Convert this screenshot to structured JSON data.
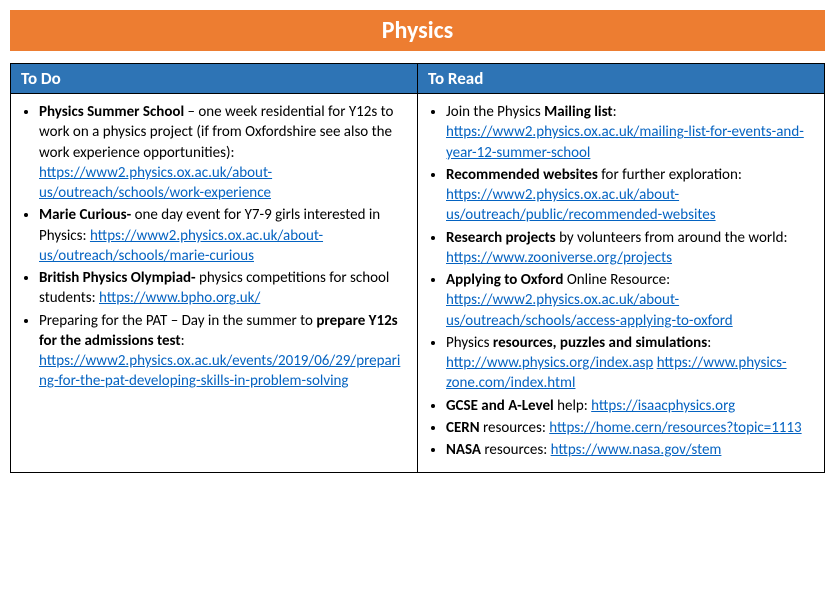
{
  "colors": {
    "title_bg": "#ed7d31",
    "header_bg": "#2e74b5",
    "link": "#0563c1",
    "border": "#000000",
    "background": "#ffffff"
  },
  "title": "Physics",
  "columns": {
    "todo": {
      "header": "To Do",
      "items": [
        {
          "segments": [
            {
              "text": "Physics Summer School",
              "bold": true
            },
            {
              "text": " – one week residential for Y12s to work on a physics project (if from Oxfordshire see also the work experience opportunities): "
            }
          ],
          "links": [
            "https://www2.physics.ox.ac.uk/about-us/outreach/schools/work-experience"
          ]
        },
        {
          "segments": [
            {
              "text": "Marie Curious-",
              "bold": true
            },
            {
              "text": " one day event for Y7-9 girls interested in Physics: "
            }
          ],
          "links": [
            "https://www2.physics.ox.ac.uk/about-us/outreach/schools/marie-curious"
          ]
        },
        {
          "segments": [
            {
              "text": "British Physics Olympiad-",
              "bold": true
            },
            {
              "text": " physics competitions for school students: "
            }
          ],
          "links": [
            "https://www.bpho.org.uk/"
          ]
        },
        {
          "segments": [
            {
              "text": "Preparing for the PAT – Day in the summer to "
            },
            {
              "text": "prepare Y12s for the admissions test",
              "bold": true
            },
            {
              "text": ": "
            }
          ],
          "links": [
            "https://www2.physics.ox.ac.uk/events/2019/06/29/preparing-for-the-pat-developing-skills-in-problem-solving"
          ]
        }
      ]
    },
    "toread": {
      "header": "To Read",
      "items": [
        {
          "segments": [
            {
              "text": "Join the Physics "
            },
            {
              "text": "Mailing list",
              "bold": true
            },
            {
              "text": ": "
            }
          ],
          "links": [
            "https://www2.physics.ox.ac.uk/mailing-list-for-events-and-year-12-summer-school"
          ]
        },
        {
          "segments": [
            {
              "text": "Recommended websites",
              "bold": true
            },
            {
              "text": " for further exploration: "
            }
          ],
          "links": [
            "https://www2.physics.ox.ac.uk/about-us/outreach/public/recommended-websites"
          ]
        },
        {
          "segments": [
            {
              "text": "Research projects",
              "bold": true
            },
            {
              "text": " by volunteers from around the world: "
            }
          ],
          "links": [
            "https://www.zooniverse.org/projects"
          ]
        },
        {
          "segments": [
            {
              "text": "Applying to Oxford",
              "bold": true
            },
            {
              "text": " Online Resource: "
            }
          ],
          "links": [
            "https://www2.physics.ox.ac.uk/about-us/outreach/schools/access-applying-to-oxford"
          ]
        },
        {
          "segments": [
            {
              "text": "Physics "
            },
            {
              "text": "resources, puzzles and simulations",
              "bold": true
            },
            {
              "text": ": "
            }
          ],
          "links": [
            "http://www.physics.org/index.asp",
            "https://www.physics-zone.com/index.html"
          ]
        },
        {
          "segments": [
            {
              "text": "GCSE and A-Level",
              "bold": true
            },
            {
              "text": " help: "
            }
          ],
          "links": [
            "https://isaacphysics.org"
          ]
        },
        {
          "segments": [
            {
              "text": "CERN",
              "bold": true
            },
            {
              "text": " resources: "
            }
          ],
          "links": [
            "https://home.cern/resources?topic=1113"
          ]
        },
        {
          "segments": [
            {
              "text": "NASA",
              "bold": true
            },
            {
              "text": " resources: "
            }
          ],
          "links": [
            "https://www.nasa.gov/stem"
          ]
        }
      ]
    }
  }
}
